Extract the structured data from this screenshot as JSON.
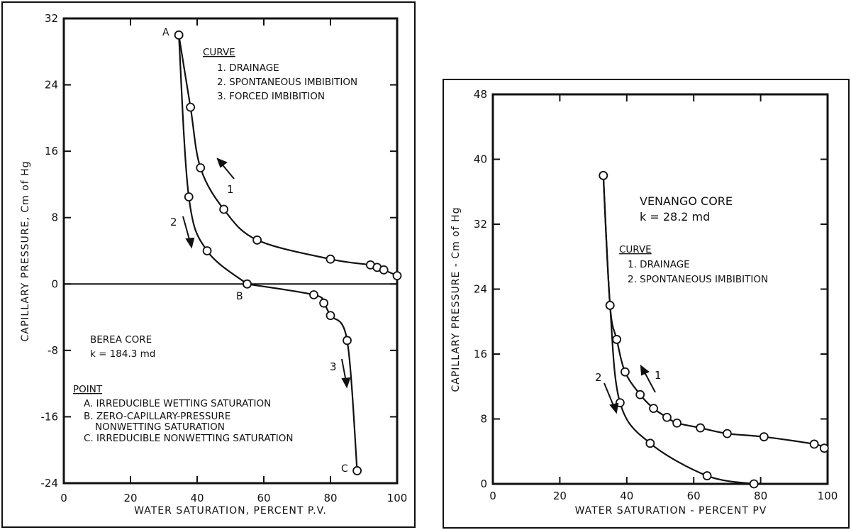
{
  "chart_data": [
    {
      "type": "line",
      "xlabel": "WATER SATURATION, PERCENT P.V.",
      "ylabel": "CAPILLARY PRESSURE, Cm of Hg",
      "xlim": [
        0,
        100
      ],
      "ylim": [
        -24,
        32
      ],
      "x_ticks": [
        "0",
        "20",
        "40",
        "60",
        "80",
        "100"
      ],
      "y_ticks": [
        "32",
        "24",
        "16",
        "8",
        "0",
        "-8",
        "-16",
        "-24"
      ],
      "grid": false,
      "zero_line": true,
      "series": [
        {
          "name": "1. DRAINAGE",
          "label": "1",
          "x": [
            34.5,
            38,
            41,
            48,
            58,
            80,
            92,
            94,
            96,
            100
          ],
          "y": [
            30,
            21.3,
            14,
            9,
            5.3,
            3,
            2.3,
            2.0,
            1.7,
            1.0
          ]
        },
        {
          "name": "2. SPONTANEOUS IMBIBITION",
          "label": "2",
          "x": [
            34.5,
            37.5,
            43,
            55
          ],
          "y": [
            30,
            10.5,
            4,
            0
          ]
        },
        {
          "name": "3. FORCED IMBIBITION",
          "label": "3",
          "x": [
            55,
            75,
            78,
            80,
            85,
            88
          ],
          "y": [
            0,
            -1.3,
            -2.3,
            -3.8,
            -6.8,
            -22.5
          ]
        }
      ],
      "points": [
        {
          "label": "A",
          "x": 34.5,
          "y": 30
        },
        {
          "label": "B",
          "x": 55,
          "y": 0
        },
        {
          "label": "C",
          "x": 88,
          "y": -22.5
        }
      ],
      "annotations": {
        "curve_title": "CURVE",
        "curve_items": [
          "1. DRAINAGE",
          "2. SPONTANEOUS IMBIBITION",
          "3. FORCED IMBIBITION"
        ],
        "core_name": "BEREA CORE",
        "core_k": "k = 184.3 md",
        "point_title": "POINT",
        "point_items": [
          "A. IRREDUCIBLE WETTING SATURATION",
          "B. ZERO-CAPILLARY-PRESSURE",
          "NONWETTING SATURATION",
          "C. IRREDUCIBLE NONWETTING SATURATION"
        ]
      }
    },
    {
      "type": "line",
      "xlabel": "WATER SATURATION - PERCENT PV",
      "ylabel": "CAPILLARY PRESSURE - Cm of Hg",
      "xlim": [
        0,
        100
      ],
      "ylim": [
        0,
        48
      ],
      "x_ticks": [
        "0",
        "20",
        "40",
        "60",
        "80",
        "100"
      ],
      "y_ticks": [
        "48",
        "40",
        "32",
        "24",
        "16",
        "8",
        "0"
      ],
      "grid": false,
      "series": [
        {
          "name": "1. DRAINAGE",
          "label": "1",
          "x": [
            33,
            35,
            37,
            39.5,
            44,
            48,
            52,
            55,
            62,
            70,
            81,
            96,
            99
          ],
          "y": [
            38,
            22,
            17.8,
            13.8,
            11,
            9.3,
            8.2,
            7.5,
            6.9,
            6.2,
            5.8,
            4.9,
            4.4
          ]
        },
        {
          "name": "2. SPONTANEOUS IMBIBITION",
          "label": "2",
          "x": [
            33,
            35,
            38,
            47,
            64,
            78
          ],
          "y": [
            38,
            22,
            10,
            5,
            1,
            0
          ]
        }
      ],
      "annotations": {
        "core_name": "VENANGO CORE",
        "core_k": "k = 28.2 md",
        "curve_title": "CURVE",
        "curve_items": [
          "1. DRAINAGE",
          "2. SPONTANEOUS IMBIBITION"
        ]
      }
    }
  ]
}
